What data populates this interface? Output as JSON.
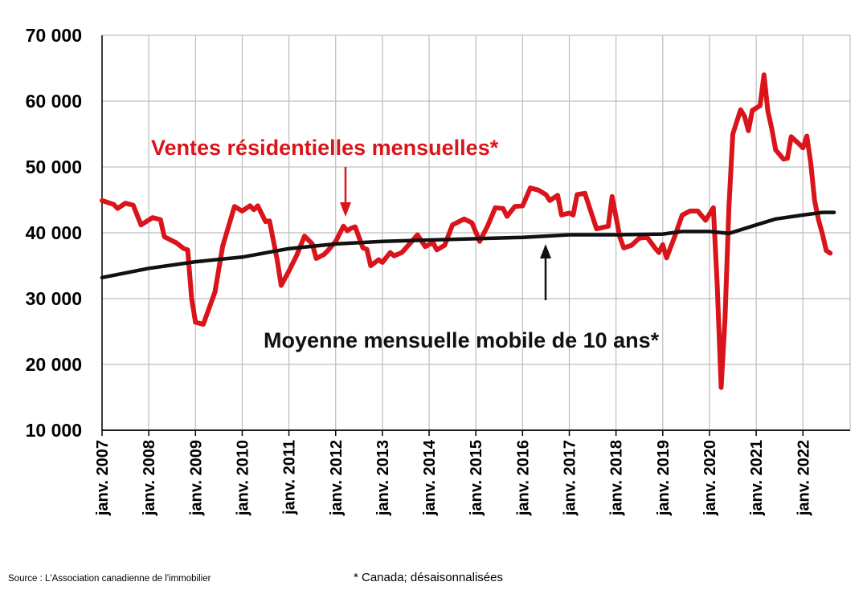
{
  "chart_data": {
    "type": "line",
    "ylim": [
      10000,
      70000
    ],
    "y_ticks": [
      "70 000",
      "60 000",
      "50 000",
      "40 000",
      "30 000",
      "20 000",
      "10 000"
    ],
    "x_ticks": [
      "janv. 2007",
      "janv. 2008",
      "janv. 2009",
      "janv. 2010",
      "janv. 2011",
      "janv. 2012",
      "janv. 2013",
      "janv. 2014",
      "janv. 2015",
      "janv. 2016",
      "janv. 2017",
      "janv. 2018",
      "janv. 2019",
      "janv. 2020",
      "janv. 2021",
      "janv. 2022"
    ],
    "grid": true,
    "series": [
      {
        "name": "Ventes résidentielles mensuelles*",
        "color": "#d9141b",
        "points": [
          [
            "2007-01",
            44900
          ],
          [
            "2007-04",
            44300
          ],
          [
            "2007-05",
            43700
          ],
          [
            "2007-07",
            44500
          ],
          [
            "2007-09",
            44200
          ],
          [
            "2007-11",
            41200
          ],
          [
            "2008-02",
            42300
          ],
          [
            "2008-04",
            42000
          ],
          [
            "2008-05",
            39400
          ],
          [
            "2008-08",
            38500
          ],
          [
            "2008-10",
            37600
          ],
          [
            "2008-11",
            37400
          ],
          [
            "2008-12",
            30000
          ],
          [
            "2009-01",
            26400
          ],
          [
            "2009-03",
            26100
          ],
          [
            "2009-06",
            31000
          ],
          [
            "2009-08",
            38000
          ],
          [
            "2009-11",
            44000
          ],
          [
            "2010-01",
            43300
          ],
          [
            "2010-03",
            44100
          ],
          [
            "2010-04",
            43500
          ],
          [
            "2010-05",
            44100
          ],
          [
            "2010-07",
            41700
          ],
          [
            "2010-08",
            41800
          ],
          [
            "2010-10",
            35800
          ],
          [
            "2010-11",
            32000
          ],
          [
            "2011-01",
            34200
          ],
          [
            "2011-03",
            36600
          ],
          [
            "2011-05",
            39500
          ],
          [
            "2011-07",
            38300
          ],
          [
            "2011-08",
            36100
          ],
          [
            "2011-10",
            36700
          ],
          [
            "2011-11",
            37300
          ],
          [
            "2012-01",
            38700
          ],
          [
            "2012-03",
            41000
          ],
          [
            "2012-04",
            40300
          ],
          [
            "2012-05",
            40700
          ],
          [
            "2012-06",
            40900
          ],
          [
            "2012-08",
            37700
          ],
          [
            "2012-09",
            37500
          ],
          [
            "2012-10",
            35000
          ],
          [
            "2012-12",
            35900
          ],
          [
            "2013-01",
            35500
          ],
          [
            "2013-03",
            37000
          ],
          [
            "2013-04",
            36500
          ],
          [
            "2013-06",
            37000
          ],
          [
            "2013-09",
            39000
          ],
          [
            "2013-10",
            39700
          ],
          [
            "2013-12",
            37900
          ],
          [
            "2014-02",
            38500
          ],
          [
            "2014-03",
            37400
          ],
          [
            "2014-05",
            38100
          ],
          [
            "2014-07",
            41200
          ],
          [
            "2014-10",
            42100
          ],
          [
            "2014-12",
            41500
          ],
          [
            "2015-02",
            38700
          ],
          [
            "2015-04",
            41000
          ],
          [
            "2015-06",
            43800
          ],
          [
            "2015-08",
            43700
          ],
          [
            "2015-09",
            42500
          ],
          [
            "2015-11",
            44000
          ],
          [
            "2016-01",
            44100
          ],
          [
            "2016-03",
            46800
          ],
          [
            "2016-05",
            46500
          ],
          [
            "2016-07",
            45800
          ],
          [
            "2016-08",
            44900
          ],
          [
            "2016-10",
            45700
          ],
          [
            "2016-11",
            42700
          ],
          [
            "2017-01",
            43000
          ],
          [
            "2017-02",
            42700
          ],
          [
            "2017-03",
            45800
          ],
          [
            "2017-05",
            46000
          ],
          [
            "2017-08",
            40600
          ],
          [
            "2017-11",
            41000
          ],
          [
            "2017-12",
            45500
          ],
          [
            "2018-02",
            39300
          ],
          [
            "2018-03",
            37700
          ],
          [
            "2018-05",
            38100
          ],
          [
            "2018-07",
            39200
          ],
          [
            "2018-09",
            39300
          ],
          [
            "2018-11",
            37700
          ],
          [
            "2018-12",
            37000
          ],
          [
            "2019-01",
            38200
          ],
          [
            "2019-02",
            36200
          ],
          [
            "2019-04",
            39300
          ],
          [
            "2019-06",
            42700
          ],
          [
            "2019-08",
            43300
          ],
          [
            "2019-10",
            43300
          ],
          [
            "2019-12",
            41900
          ],
          [
            "2020-02",
            43800
          ],
          [
            "2020-03",
            32000
          ],
          [
            "2020-04",
            16500
          ],
          [
            "2020-05",
            27000
          ],
          [
            "2020-06",
            44000
          ],
          [
            "2020-07",
            55000
          ],
          [
            "2020-09",
            58700
          ],
          [
            "2020-10",
            57700
          ],
          [
            "2020-11",
            55500
          ],
          [
            "2020-12",
            58600
          ],
          [
            "2021-02",
            59300
          ],
          [
            "2021-03",
            64000
          ],
          [
            "2021-04",
            58500
          ],
          [
            "2021-05",
            55800
          ],
          [
            "2021-06",
            52600
          ],
          [
            "2021-08",
            51200
          ],
          [
            "2021-09",
            51300
          ],
          [
            "2021-10",
            54600
          ],
          [
            "2021-12",
            53500
          ],
          [
            "2022-01",
            52900
          ],
          [
            "2022-02",
            54700
          ],
          [
            "2022-03",
            50700
          ],
          [
            "2022-04",
            44900
          ],
          [
            "2022-05",
            42000
          ],
          [
            "2022-06",
            39800
          ],
          [
            "2022-07",
            37300
          ],
          [
            "2022-08",
            36900
          ]
        ]
      },
      {
        "name": "Moyenne mensuelle mobile de 10 ans*",
        "color": "#111111",
        "points": [
          [
            "2007-01",
            33200
          ],
          [
            "2008-01",
            34600
          ],
          [
            "2009-01",
            35600
          ],
          [
            "2010-01",
            36300
          ],
          [
            "2011-01",
            37600
          ],
          [
            "2012-01",
            38300
          ],
          [
            "2013-01",
            38700
          ],
          [
            "2014-01",
            38900
          ],
          [
            "2015-01",
            39100
          ],
          [
            "2016-01",
            39300
          ],
          [
            "2017-01",
            39700
          ],
          [
            "2018-01",
            39700
          ],
          [
            "2019-01",
            39800
          ],
          [
            "2019-06",
            40200
          ],
          [
            "2020-01",
            40200
          ],
          [
            "2020-06",
            39900
          ],
          [
            "2021-01",
            41200
          ],
          [
            "2021-06",
            42100
          ],
          [
            "2022-01",
            42700
          ],
          [
            "2022-06",
            43100
          ],
          [
            "2022-09",
            43100
          ]
        ]
      }
    ],
    "annotations": {
      "sales_label": "Ventes résidentielles mensuelles*",
      "avg_label": "Moyenne mensuelle mobile de 10 ans*"
    }
  },
  "footer": {
    "source": "Source : L'Association canadienne de l'immobilier",
    "note": "* Canada; désaisonnalisées"
  }
}
